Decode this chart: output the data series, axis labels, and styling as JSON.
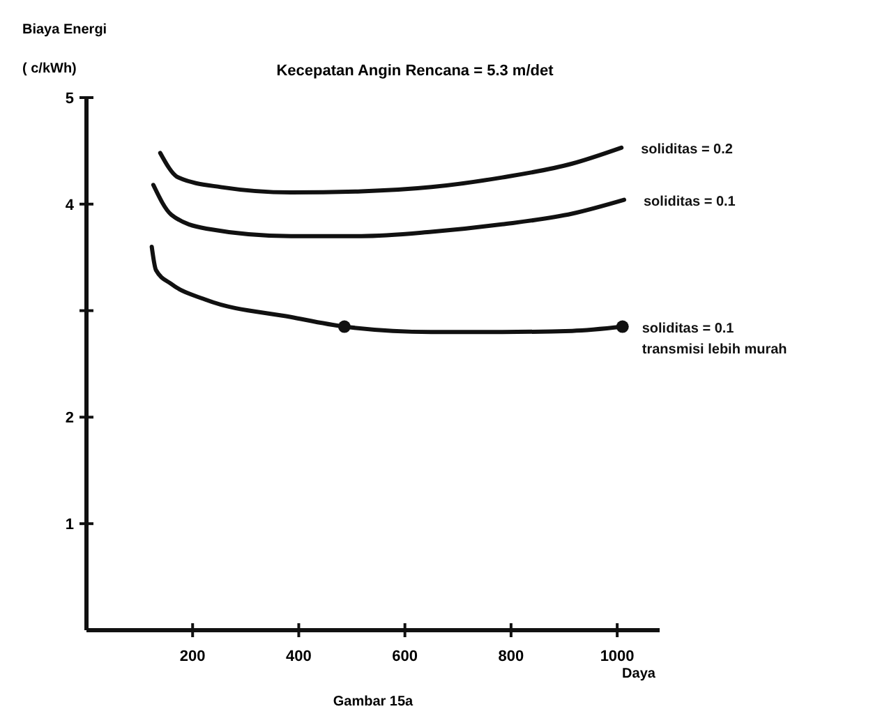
{
  "chart_data": {
    "type": "line",
    "title": "Kecepatan Angin Rencana = 5.3 m/det",
    "ylabel": "Biaya Energi\n( c/kWh)",
    "xlabel": "Daya",
    "annotations": [
      "Gambar 15a"
    ],
    "xlim": [
      0,
      1080
    ],
    "xticks": [
      200,
      400,
      600,
      800,
      1000
    ],
    "ylim": [
      0,
      5
    ],
    "yticks": [
      1,
      2,
      {
        "value": 3,
        "label": null
      },
      4,
      5
    ],
    "grid": false,
    "line_style": "solid",
    "series": [
      {
        "name": "soliditas = 0.2",
        "color": "#111111",
        "x": [
          139,
          173,
          253,
          385,
          518,
          650,
          783,
          915,
          1008
        ],
        "values": [
          4.48,
          4.25,
          4.16,
          4.11,
          4.12,
          4.16,
          4.25,
          4.38,
          4.53
        ]
      },
      {
        "name": "soliditas = 0.1",
        "color": "#111111",
        "x": [
          126,
          160,
          226,
          385,
          518,
          650,
          783,
          915,
          1013
        ],
        "values": [
          4.18,
          3.9,
          3.77,
          3.7,
          3.7,
          3.74,
          3.81,
          3.91,
          4.04
        ]
      },
      {
        "name": "soliditas = 0.1\ntransmisi lebih murah",
        "color": "#111111",
        "x": [
          123,
          131,
          160,
          226,
          385,
          486,
          650,
          783,
          915,
          1010
        ],
        "values": [
          3.6,
          3.38,
          3.25,
          3.1,
          2.94,
          2.85,
          2.8,
          2.8,
          2.81,
          2.85
        ]
      },
      {
        "type": "scatter",
        "color": "#111111",
        "marker": "circle",
        "x": [
          486,
          1010
        ],
        "values": [
          2.85,
          2.85
        ]
      }
    ]
  }
}
